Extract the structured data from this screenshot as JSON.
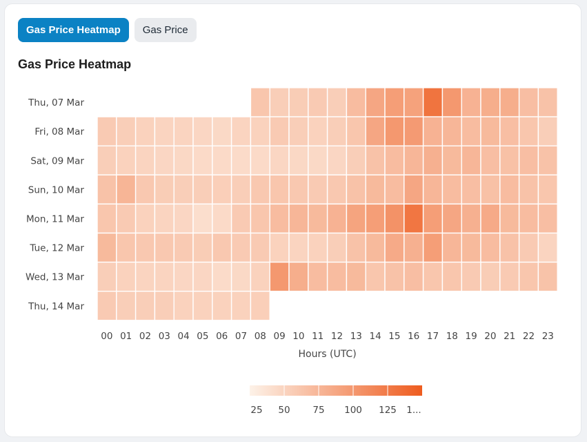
{
  "tabs": [
    {
      "label": "Gas Price Heatmap",
      "active": true
    },
    {
      "label": "Gas Price",
      "active": false
    }
  ],
  "chart_data": {
    "type": "heatmap",
    "title": "Gas Price Heatmap",
    "xlabel": "Hours (UTC)",
    "ylabel": "",
    "x": [
      "00",
      "01",
      "02",
      "03",
      "04",
      "05",
      "06",
      "07",
      "08",
      "09",
      "10",
      "11",
      "12",
      "13",
      "14",
      "15",
      "16",
      "17",
      "18",
      "19",
      "20",
      "21",
      "22",
      "23"
    ],
    "y": [
      "Thu, 07 Mar",
      "Fri, 08 Mar",
      "Sat, 09 Mar",
      "Sun, 10 Mar",
      "Mon, 11 Mar",
      "Tue, 12 Mar",
      "Wed, 13 Mar",
      "Thu, 14 Mar"
    ],
    "values": [
      [
        null,
        null,
        null,
        null,
        null,
        null,
        null,
        null,
        62,
        55,
        56,
        58,
        55,
        70,
        88,
        95,
        92,
        130,
        100,
        78,
        82,
        82,
        68,
        65
      ],
      [
        58,
        55,
        52,
        50,
        50,
        48,
        46,
        50,
        52,
        58,
        55,
        52,
        55,
        62,
        88,
        100,
        98,
        78,
        75,
        70,
        72,
        68,
        62,
        55
      ],
      [
        55,
        52,
        50,
        48,
        47,
        45,
        45,
        44,
        45,
        48,
        47,
        46,
        48,
        55,
        65,
        70,
        75,
        80,
        72,
        75,
        68,
        66,
        68,
        65
      ],
      [
        65,
        76,
        60,
        56,
        55,
        55,
        54,
        55,
        60,
        62,
        60,
        58,
        60,
        65,
        72,
        70,
        88,
        75,
        70,
        68,
        66,
        70,
        65,
        62
      ],
      [
        62,
        58,
        52,
        50,
        48,
        42,
        45,
        58,
        62,
        70,
        75,
        72,
        78,
        90,
        95,
        105,
        128,
        95,
        88,
        80,
        85,
        72,
        70,
        68
      ],
      [
        72,
        62,
        60,
        60,
        58,
        56,
        60,
        58,
        58,
        52,
        50,
        52,
        55,
        65,
        72,
        85,
        80,
        95,
        75,
        72,
        70,
        65,
        58,
        50
      ],
      [
        55,
        52,
        50,
        50,
        48,
        48,
        44,
        46,
        52,
        100,
        82,
        70,
        70,
        72,
        62,
        65,
        68,
        62,
        62,
        58,
        56,
        58,
        62,
        64
      ],
      [
        58,
        55,
        55,
        55,
        52,
        52,
        52,
        52,
        54,
        null,
        null,
        null,
        null,
        null,
        null,
        null,
        null,
        null,
        null,
        null,
        null,
        null,
        null,
        null
      ]
    ],
    "color_min": 25,
    "color_max": 150,
    "color_low": "#fdf2e8",
    "color_high": "#ee5c1f",
    "legend_ticks": [
      "25",
      "50",
      "75",
      "100",
      "125",
      "1..."
    ]
  }
}
